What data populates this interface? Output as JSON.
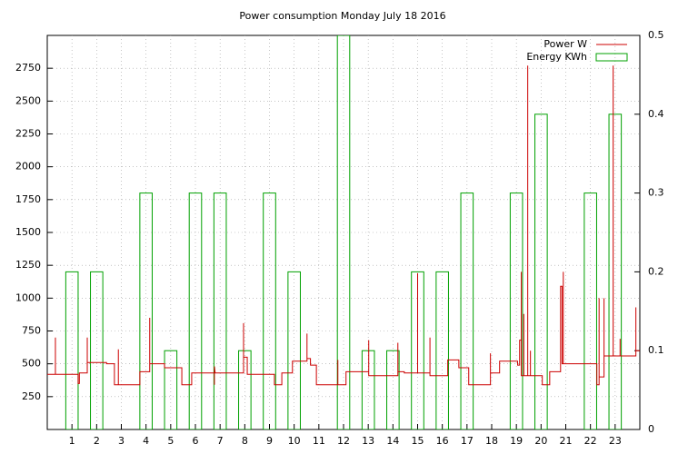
{
  "chart_data": {
    "type": "line",
    "title": "Power consumption Monday July 18 2016",
    "xlim": [
      0,
      24
    ],
    "xticks": [
      1,
      2,
      3,
      4,
      5,
      6,
      7,
      8,
      9,
      10,
      11,
      12,
      13,
      14,
      15,
      16,
      17,
      18,
      19,
      20,
      21,
      22,
      23
    ],
    "ylim": [
      0,
      3000
    ],
    "yticks": [
      250,
      500,
      750,
      1000,
      1250,
      1500,
      1750,
      2000,
      2250,
      2500,
      2750
    ],
    "y2lim": [
      0,
      0.5
    ],
    "y2ticks": [
      0,
      0.1,
      0.2,
      0.3,
      0.4,
      0.5
    ],
    "grid": true,
    "legend": "top-right",
    "series": [
      {
        "name": "Power W",
        "color": "#cc0000",
        "type": "line",
        "x": [
          0,
          0.33,
          0.33,
          0.33,
          1.25,
          1.25,
          1.3,
          1.3,
          1.62,
          1.62,
          1.62,
          2.4,
          2.4,
          2.72,
          2.72,
          2.88,
          2.88,
          2.88,
          3.75,
          3.75,
          4.15,
          4.15,
          4.15,
          4.75,
          4.75,
          5.45,
          5.45,
          5.85,
          5.85,
          6.77,
          6.77,
          6.77,
          6.8,
          7.95,
          7.95,
          7.95,
          8.1,
          8.1,
          9.2,
          9.2,
          9.5,
          9.5,
          9.93,
          9.93,
          10.52,
          10.52,
          10.52,
          10.66,
          10.66,
          10.9,
          10.9,
          11.77,
          11.77,
          11.77,
          12.1,
          12.1,
          13.02,
          13.02,
          13.02,
          14.2,
          14.2,
          14.2,
          14.46,
          14.46,
          15,
          15,
          15,
          15.5,
          15.5,
          15.5,
          16.22,
          16.22,
          16.67,
          16.67,
          17.07,
          17.07,
          17.95,
          17.95,
          17.95,
          18.32,
          18.32,
          19.05,
          19.05,
          19.13,
          19.13,
          19.2,
          19.2,
          19.2,
          19.3,
          19.3,
          19.3,
          19.46,
          19.46,
          19.46,
          19.57,
          19.57,
          19.57,
          20.05,
          20.05,
          20.35,
          20.35,
          20.79,
          20.79,
          20.85,
          20.85,
          20.9,
          20.9,
          20.9,
          22.26,
          22.26,
          22.35,
          22.35,
          22.35,
          22.55,
          22.55,
          22.55,
          22.92,
          22.92,
          22.92,
          23.2,
          23.2,
          23.2,
          23.84,
          23.84,
          23.84,
          24
        ],
        "values": [
          420,
          420,
          700,
          420,
          420,
          350,
          350,
          430,
          430,
          700,
          510,
          510,
          500,
          500,
          340,
          340,
          610,
          340,
          340,
          440,
          440,
          850,
          500,
          500,
          470,
          470,
          340,
          340,
          430,
          430,
          340,
          480,
          430,
          430,
          810,
          550,
          550,
          420,
          420,
          340,
          340,
          430,
          430,
          520,
          520,
          730,
          540,
          540,
          490,
          490,
          340,
          340,
          530,
          340,
          340,
          440,
          440,
          680,
          410,
          410,
          660,
          440,
          440,
          430,
          430,
          1190,
          430,
          430,
          700,
          410,
          410,
          530,
          530,
          470,
          470,
          340,
          340,
          580,
          430,
          430,
          520,
          520,
          490,
          490,
          680,
          680,
          1200,
          410,
          410,
          880,
          410,
          410,
          2770,
          410,
          410,
          600,
          410,
          410,
          340,
          340,
          440,
          440,
          1090,
          1090,
          500,
          500,
          1200,
          500,
          500,
          340,
          340,
          1000,
          400,
          400,
          1000,
          560,
          560,
          2770,
          560,
          560,
          690,
          560,
          560,
          930,
          600,
          600
        ]
      },
      {
        "name": "Energy KWh",
        "color": "#00a000",
        "type": "boxes",
        "axis": "y2",
        "x": [
          1,
          2,
          3,
          4,
          5,
          6,
          7,
          8,
          9,
          10,
          11,
          12,
          13,
          14,
          15,
          16,
          17,
          18,
          19,
          20,
          21,
          22,
          23
        ],
        "values": [
          0.2,
          0.2,
          0,
          0.3,
          0.1,
          0.3,
          0.3,
          0.1,
          0.3,
          0.2,
          0,
          0.5,
          0.1,
          0.1,
          0.2,
          0.2,
          0.3,
          0,
          0.3,
          0.4,
          0,
          0.3,
          0.4
        ]
      }
    ]
  }
}
